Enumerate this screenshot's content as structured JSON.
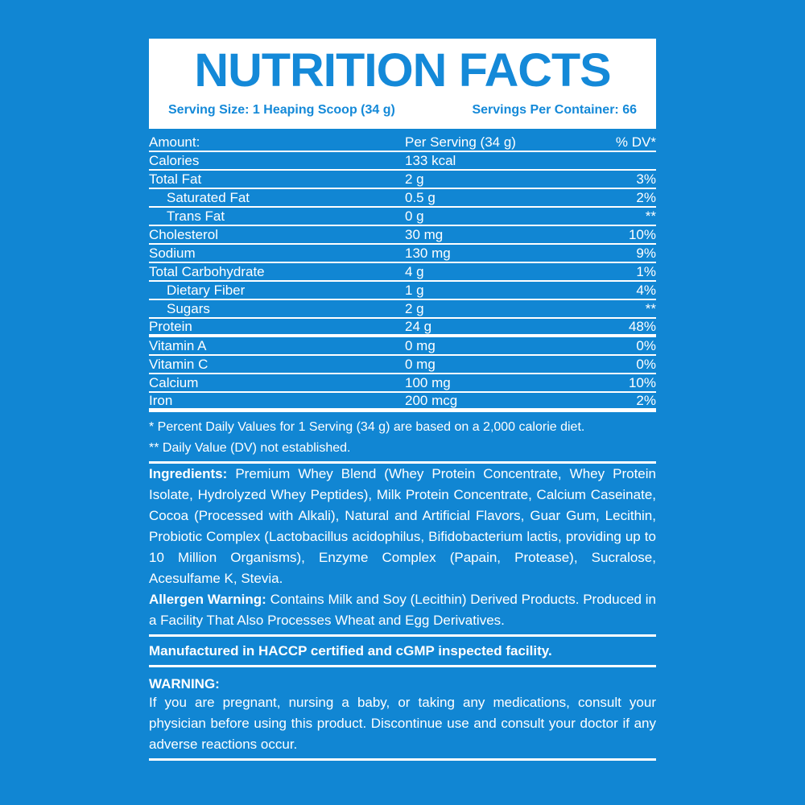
{
  "colors": {
    "background": "#1186D3",
    "title_blue": "#1489D8",
    "panel_white": "#FFFFFF",
    "text_white": "#FFFFFF"
  },
  "header": {
    "title": "NUTRITION FACTS",
    "serving_size": "Serving Size: 1 Heaping Scoop (34 g)",
    "servings_per_container": "Servings Per Container: 66"
  },
  "table": {
    "header": {
      "amount": "Amount:",
      "per_serving": "Per Serving (34 g)",
      "dv": "% DV*"
    },
    "rows": [
      {
        "label": "Calories",
        "value": "133 kcal",
        "dv": ""
      },
      {
        "label": "Total Fat",
        "value": "2 g",
        "dv": "3%"
      },
      {
        "label": "Saturated Fat",
        "value": "0.5 g",
        "dv": "2%"
      },
      {
        "label": "Trans Fat",
        "value": "0 g",
        "dv": "**"
      },
      {
        "label": "Cholesterol",
        "value": "30 mg",
        "dv": "10%"
      },
      {
        "label": "Sodium",
        "value": "130 mg",
        "dv": "9%"
      },
      {
        "label": "Total Carbohydrate",
        "value": "4 g",
        "dv": "1%"
      },
      {
        "label": "Dietary Fiber",
        "value": "1 g",
        "dv": "4%"
      },
      {
        "label": "Sugars",
        "value": "2 g",
        "dv": "**"
      },
      {
        "label": "Protein",
        "value": "24 g",
        "dv": "48%"
      },
      {
        "label": "Vitamin A",
        "value": "0 mg",
        "dv": "0%"
      },
      {
        "label": "Vitamin C",
        "value": "0 mg",
        "dv": "0%"
      },
      {
        "label": "Calcium",
        "value": "100 mg",
        "dv": "10%"
      },
      {
        "label": "Iron",
        "value": "200 mcg",
        "dv": "2%"
      }
    ]
  },
  "footnotes": {
    "first": "* Percent Daily Values for 1 Serving (34 g) are based on a 2,000 calorie diet.",
    "second": "** Daily Value (DV) not established."
  },
  "ingredients": {
    "heading": "Ingredients:",
    "text": "Premium Whey Blend (Whey Protein Concentrate, Whey Protein Isolate, Hydrolyzed Whey Peptides), Milk Protein Concentrate, Calcium Caseinate, Cocoa (Processed with Alkali), Natural and Artificial Flavors, Guar Gum, Lecithin, Probiotic Complex (Lactobacillus acidophilus, Bifidobacterium lactis, providing up to 10 Million Organisms), Enzyme Complex (Papain, Protease), Sucralose, Acesulfame K, Stevia."
  },
  "allergen": {
    "heading": "Allergen Warning:",
    "text": "Contains Milk and Soy (Lecithin) Derived Products. Produced in a Facility That Also Processes Wheat and Egg Derivatives."
  },
  "manufacturing": {
    "text": "Manufactured in HACCP certified and cGMP inspected facility."
  },
  "warning": {
    "heading": "WARNING:",
    "text": "If you are pregnant, nursing a baby, or taking any medications, consult your physician before using this product. Discontinue use and consult your doctor if any adverse reactions occur."
  }
}
